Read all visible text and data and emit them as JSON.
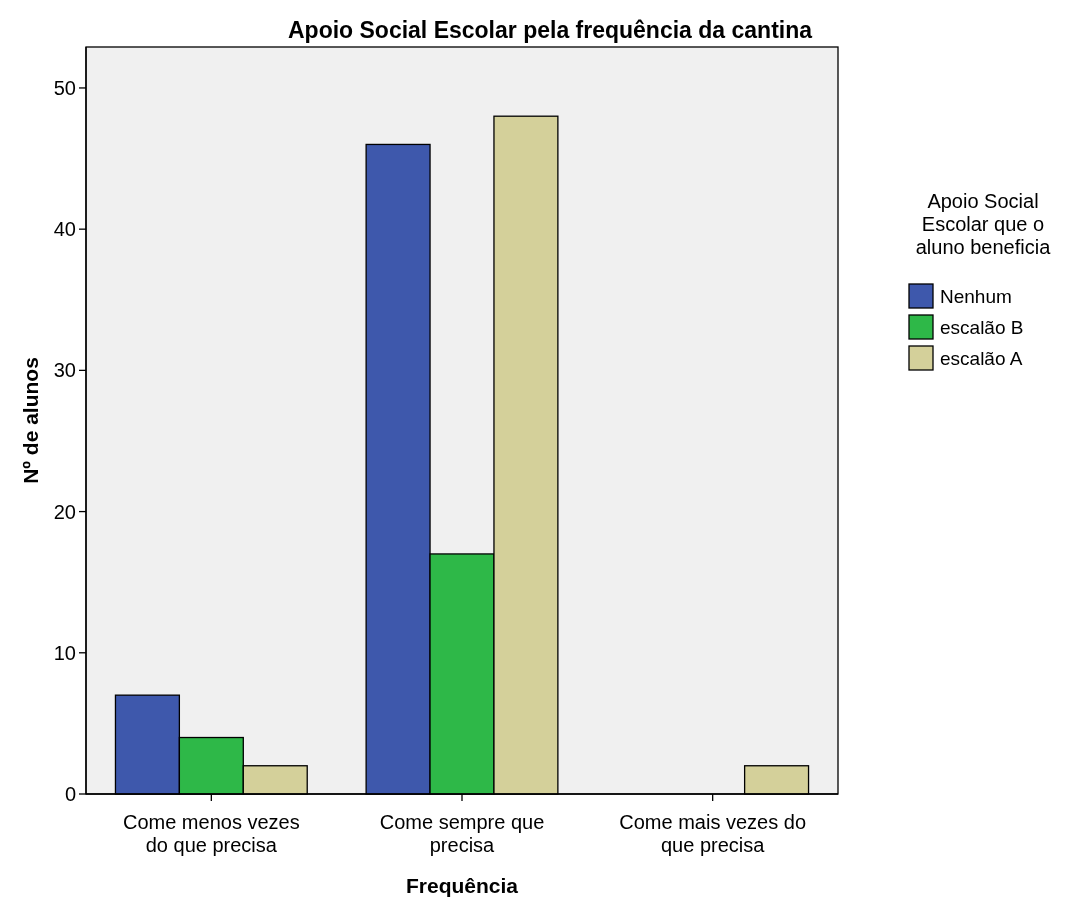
{
  "chart_data": {
    "type": "bar",
    "title": "Apoio Social Escolar pela frequência da cantina",
    "xlabel": "Frequência",
    "ylabel": "Nº de alunos",
    "legend_title": "Apoio Social Escolar que o aluno beneficia",
    "legend": "right",
    "grid": false,
    "categories": [
      "Come menos vezes do que precisa",
      "Come sempre que precisa",
      "Come mais vezes do que precisa"
    ],
    "series": [
      {
        "name": "Nenhum",
        "color": "#3e58ac",
        "values": [
          7,
          46,
          0
        ]
      },
      {
        "name": "escalão B",
        "color": "#2eb848",
        "values": [
          4,
          17,
          0
        ]
      },
      {
        "name": "escalão A",
        "color": "#d4d09a",
        "values": [
          2,
          48,
          2
        ]
      }
    ],
    "ylim": [
      0,
      52.9
    ],
    "yticks": [
      0,
      10,
      20,
      30,
      40,
      50
    ]
  }
}
